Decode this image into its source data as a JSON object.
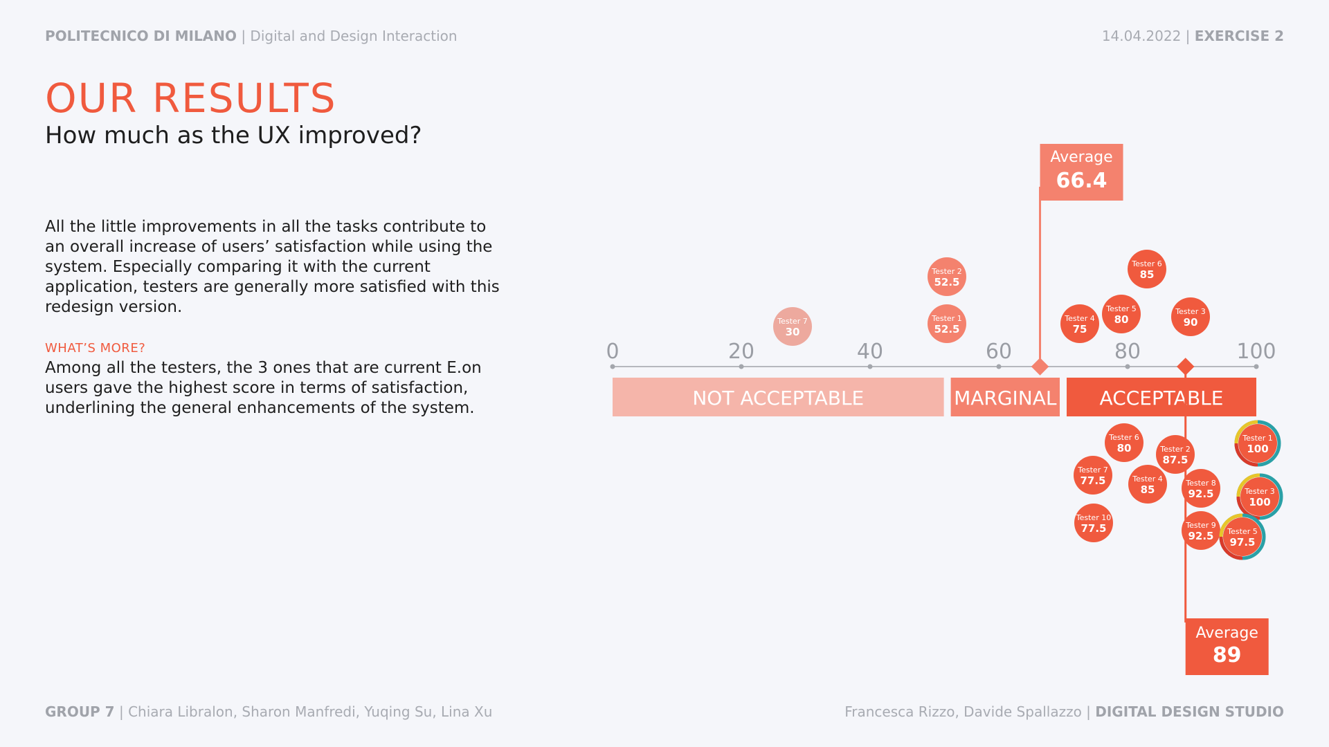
{
  "header": {
    "left_bold": "POLITECNICO DI MILANO",
    "left_rest": "| Digital and Design Interaction",
    "right_date": "14.04.2022 |",
    "right_bold": "EXERCISE 2"
  },
  "title": "OUR RESULTS",
  "subtitle": "How much as the UX improved?",
  "paragraph1": "All the little improvements in all the tasks contribute to an overall increase of users’ satisfaction while using the system. Especially comparing it with the current application, testers are generally more satisfied with this redesign version.",
  "more_label": "WHAT’S MORE?",
  "paragraph2": "Among all the testers, the 3 ones that are current E.on users gave the highest score in terms of satisfaction, underlining the general enhancements of the system.",
  "footer": {
    "left_bold": "GROUP 7",
    "left_rest": "| Chiara Libralon, Sharon Manfredi, Yuqing Su, Lina Xu",
    "right_rest": "Francesca Rizzo, Davide Spallazzo  |",
    "right_bold": "DIGITAL DESIGN STUDIO"
  },
  "chart_data": {
    "type": "scatter",
    "x_ticks": [
      0,
      20,
      40,
      60,
      80,
      100
    ],
    "xlim": [
      0,
      100
    ],
    "zones": [
      {
        "label": "NOT ACCEPTABLE",
        "from": 0,
        "to": 52,
        "color": "#f5b5aa"
      },
      {
        "label": "MARGINAL",
        "from": 52,
        "to": 70,
        "color": "#f4826e"
      },
      {
        "label": "ACCEPTABLE",
        "from": 70,
        "to": 100,
        "color": "#f05a3e"
      }
    ],
    "series": [
      {
        "average_label": "Average",
        "average": 66.4,
        "average_text": "66.4",
        "color": "#f4826e",
        "points": [
          {
            "name": "Tester 7",
            "value": 30,
            "text": "30"
          },
          {
            "name": "Tester 2",
            "value": 52.5,
            "text": "52.5"
          },
          {
            "name": "Tester 1",
            "value": 52.5,
            "text": "52.5"
          },
          {
            "name": "Tester 4",
            "value": 75,
            "text": "75"
          },
          {
            "name": "Tester 5",
            "value": 80,
            "text": "80"
          },
          {
            "name": "Tester 6",
            "value": 85,
            "text": "85"
          },
          {
            "name": "Tester 3",
            "value": 90,
            "text": "90"
          }
        ]
      },
      {
        "average_label": "Average",
        "average": 89,
        "average_text": "89",
        "color": "#f05a3e",
        "points": [
          {
            "name": "Tester 6",
            "value": 80,
            "text": "80"
          },
          {
            "name": "Tester 2",
            "value": 87.5,
            "text": "87.5"
          },
          {
            "name": "Tester 7",
            "value": 77.5,
            "text": "77.5"
          },
          {
            "name": "Tester 4",
            "value": 85,
            "text": "85"
          },
          {
            "name": "Tester 8",
            "value": 92.5,
            "text": "92.5"
          },
          {
            "name": "Tester 10",
            "value": 77.5,
            "text": "77.5"
          },
          {
            "name": "Tester 9",
            "value": 92.5,
            "text": "92.5"
          },
          {
            "name": "Tester 1",
            "value": 100,
            "text": "100",
            "highlight": true
          },
          {
            "name": "Tester 3",
            "value": 100,
            "text": "100",
            "highlight": true
          },
          {
            "name": "Tester 5",
            "value": 97.5,
            "text": "97.5",
            "highlight": true
          }
        ]
      }
    ]
  }
}
